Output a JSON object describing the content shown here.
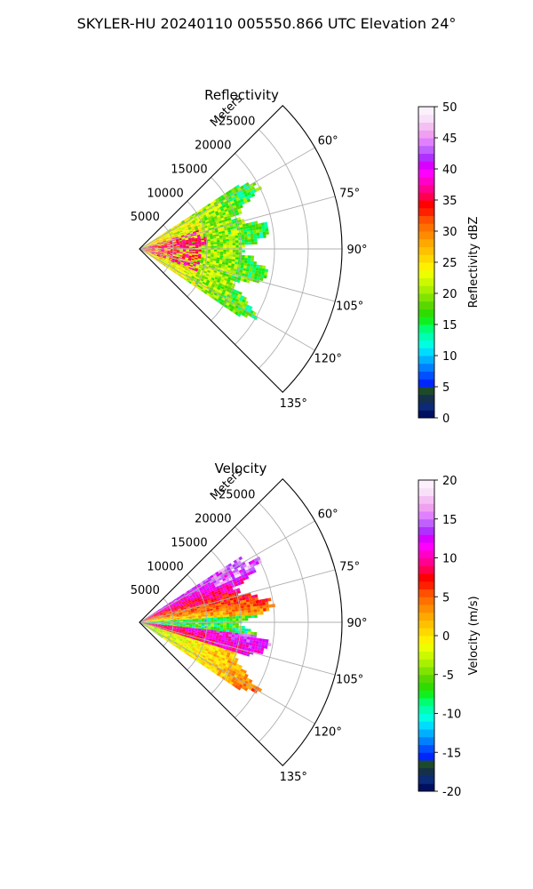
{
  "suptitle": "SKYLER-HU  20240110  005550.866 UTC Elevation 24°",
  "chart_data": [
    {
      "type": "heatmap",
      "projection": "polar sector (azimuth 45°–135°)",
      "title": "Reflectivity",
      "range_label": "Meters",
      "range_ticks": [
        "5000",
        "10000",
        "15000",
        "20000",
        "25000"
      ],
      "range_tick_values": [
        5000,
        10000,
        15000,
        20000,
        25000
      ],
      "range_max": 30000,
      "azimuth_ticks": [
        "60°",
        "75°",
        "90°",
        "105°",
        "120°",
        "135°"
      ],
      "azimuth_tick_values": [
        60,
        75,
        90,
        105,
        120,
        135
      ],
      "azimuth_range": [
        45,
        135
      ],
      "grid": true,
      "colorbar": {
        "label": "Reflectivity dBZ",
        "min": 0,
        "max": 50,
        "ticks": [
          "0",
          "5",
          "10",
          "15",
          "20",
          "25",
          "30",
          "35",
          "40",
          "45",
          "50"
        ],
        "colors": [
          "#001060",
          "#0b2a78",
          "#15304a",
          "#1d4a2a",
          "#0026ff",
          "#0050ff",
          "#0080ff",
          "#00b0ff",
          "#00dcff",
          "#00ffe0",
          "#00ffb0",
          "#00ff70",
          "#10f020",
          "#30dc00",
          "#58d800",
          "#80e400",
          "#a8f000",
          "#ccf800",
          "#ecff00",
          "#fff000",
          "#ffd800",
          "#ffc000",
          "#ffa800",
          "#ff8c00",
          "#ff7000",
          "#ff5000",
          "#ff2000",
          "#ff0000",
          "#ff0050",
          "#ff0090",
          "#ff00c8",
          "#ff00ff",
          "#d800ff",
          "#b030ff",
          "#c060ff",
          "#e080ff",
          "#f0a0f0",
          "#f4c0f4",
          "#f8e0f8",
          "#fcf0fc"
        ]
      },
      "echo_extent_m": 20000,
      "echo_azimuth_extent": [
        57,
        124
      ]
    },
    {
      "type": "heatmap",
      "projection": "polar sector (azimuth 45°–135°)",
      "title": "Velocity",
      "range_label": "Meters",
      "range_ticks": [
        "5000",
        "10000",
        "15000",
        "20000",
        "25000"
      ],
      "range_tick_values": [
        5000,
        10000,
        15000,
        20000,
        25000
      ],
      "range_max": 30000,
      "azimuth_ticks": [
        "60°",
        "75°",
        "90°",
        "105°",
        "120°",
        "135°"
      ],
      "azimuth_tick_values": [
        60,
        75,
        90,
        105,
        120,
        135
      ],
      "azimuth_range": [
        45,
        135
      ],
      "grid": true,
      "colorbar": {
        "label": "Velocity (m/s)",
        "min": -20,
        "max": 20,
        "ticks": [
          "-20",
          "-15",
          "-10",
          "-5",
          "0",
          "5",
          "10",
          "15",
          "20"
        ],
        "colors": [
          "#001060",
          "#0b2a78",
          "#15304a",
          "#1d4a2a",
          "#0026ff",
          "#0050ff",
          "#0080ff",
          "#00b0ff",
          "#00dcff",
          "#00ffe0",
          "#00ffb0",
          "#00ff70",
          "#10f020",
          "#30dc00",
          "#58d800",
          "#80e400",
          "#a8f000",
          "#ccf800",
          "#ecff00",
          "#fff000",
          "#ffd800",
          "#ffc000",
          "#ffa800",
          "#ff8c00",
          "#ff7000",
          "#ff5000",
          "#ff2000",
          "#ff0000",
          "#ff0050",
          "#ff0090",
          "#ff00c8",
          "#ff00ff",
          "#d800ff",
          "#b030ff",
          "#c060ff",
          "#e080ff",
          "#f0a0f0",
          "#f4c0f4",
          "#f8e0f8",
          "#fcf0fc"
        ]
      },
      "echo_extent_m": 20000,
      "echo_azimuth_extent": [
        57,
        124
      ]
    }
  ]
}
